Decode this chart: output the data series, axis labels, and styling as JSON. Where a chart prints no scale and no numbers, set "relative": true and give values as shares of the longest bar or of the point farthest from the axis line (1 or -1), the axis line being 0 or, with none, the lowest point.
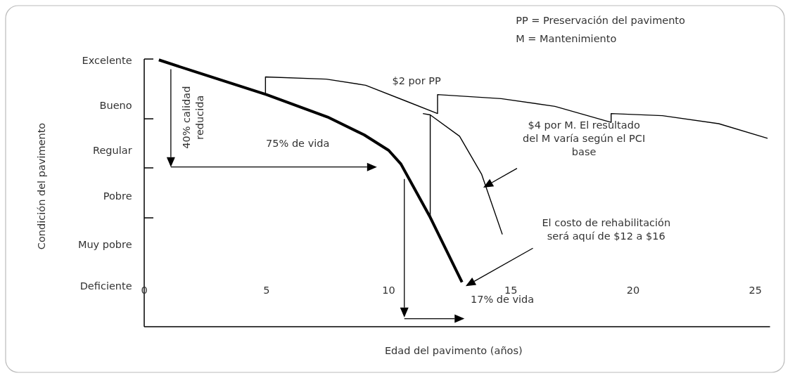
{
  "chart_data": {
    "type": "line",
    "relative": true,
    "xlabel": "Edad del pavimento (años)",
    "xlim": [
      0,
      25.6
    ],
    "xticks": [
      0,
      5,
      10,
      15,
      20,
      25
    ],
    "series": [
      {
        "color": "#000000",
        "x": [
          0.6,
          2,
          5,
          7.5,
          9,
          10,
          10.5,
          11.7,
          13
        ],
        "values": [
          1,
          0.958,
          0.87,
          0.786,
          0.719,
          0.661,
          0.61,
          0.41,
          0.167
        ]
      },
      {
        "color": "#000000",
        "x": [
          4.96,
          4.96,
          7.45,
          9.06,
          10.7,
          12,
          12,
          14.6,
          16.8,
          19.1,
          19.1,
          21.2,
          23.5,
          25.5
        ],
        "values": [
          0.87,
          0.936,
          0.928,
          0.905,
          0.846,
          0.799,
          0.87,
          0.855,
          0.826,
          0.766,
          0.799,
          0.791,
          0.761,
          0.706
        ]
      },
      {
        "color": "#000000",
        "x": [
          11.4,
          11.7,
          12.9,
          13.8,
          14.65
        ],
        "values": [
          0.799,
          0.794,
          0.714,
          0.572,
          0.346
        ]
      },
      {
        "color": "#000000",
        "x": [
          11.7,
          11.7
        ],
        "values": [
          0.413,
          0.794
        ]
      }
    ],
    "annotations": [
      "PP = Preservación del pavimento",
      "M  = Mantenimiento",
      "40% calidad\nreducida",
      "75% de vida",
      "$2 por PP",
      "$4 por M. El resultado\ndel M varía según el PCI\nbase",
      "El costo de rehabilitación\nserá aquí de $12 a $16",
      "17% de vida",
      "Excelente",
      "Bueno",
      "Regular",
      "Pobre",
      "Muy pobre",
      "Deficiente",
      "Condición del pavimento"
    ]
  }
}
